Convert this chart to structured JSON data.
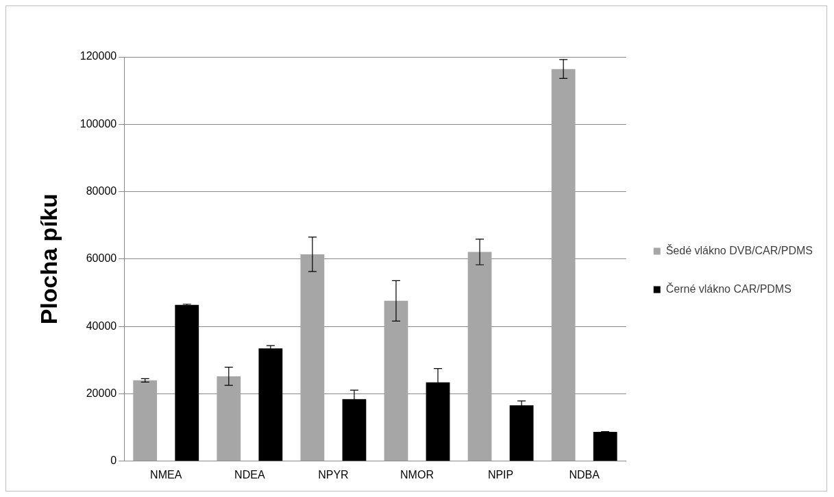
{
  "chart_data": {
    "type": "bar",
    "ylabel": "Plocha píku",
    "categories": [
      "NMEA",
      "NDEA",
      "NPYR",
      "NMOR",
      "NPIP",
      "NDBA"
    ],
    "series": [
      {
        "name": "Šedé vlákno DVB/CAR/PDMS",
        "color": "#a6a6a6",
        "values": [
          24000,
          25200,
          61400,
          47600,
          62100,
          116400
        ],
        "errors": [
          500,
          2700,
          5100,
          6000,
          3800,
          2800
        ]
      },
      {
        "name": "Černé vlákno CAR/PDMS",
        "color": "#000000",
        "values": [
          46400,
          33500,
          18400,
          23400,
          16600,
          8700
        ],
        "errors": [
          200,
          800,
          2700,
          4100,
          1300,
          100
        ]
      }
    ],
    "ylim": [
      0,
      120000
    ],
    "yticks": [
      0,
      20000,
      40000,
      60000,
      80000,
      100000,
      120000
    ],
    "grid": "y",
    "legend": "right"
  }
}
